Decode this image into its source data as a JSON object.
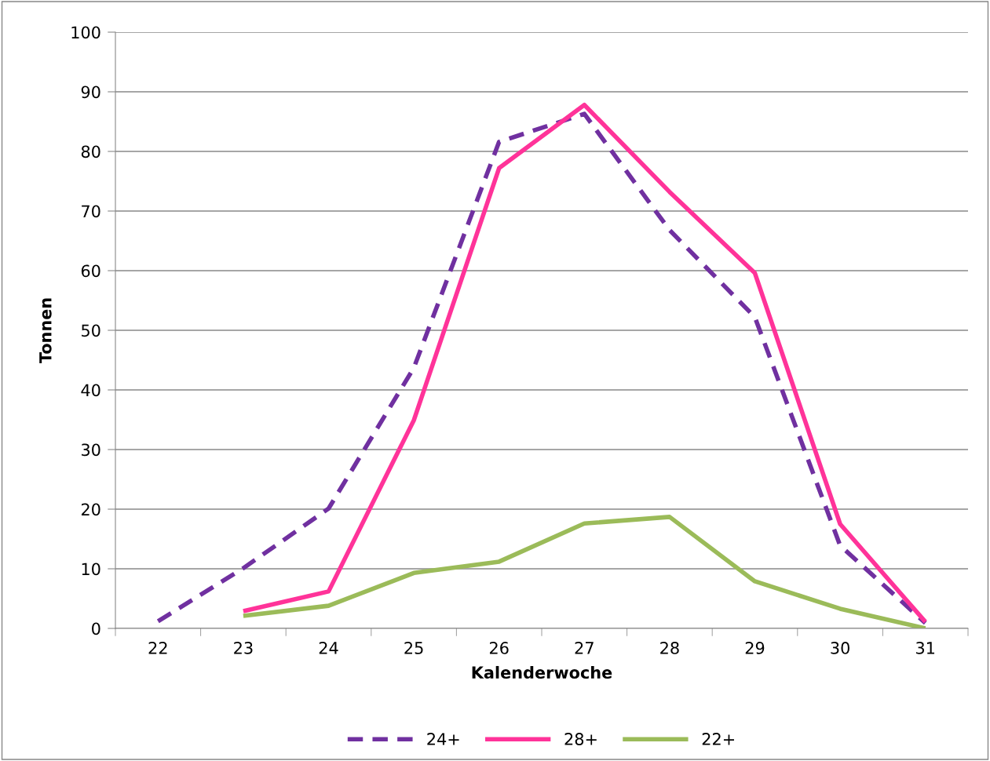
{
  "chart_data": {
    "type": "line",
    "xlabel": "Kalenderwoche",
    "ylabel": "Tonnen",
    "categories": [
      "22",
      "23",
      "24",
      "25",
      "26",
      "27",
      "28",
      "29",
      "30",
      "31"
    ],
    "series": [
      {
        "name": "24+",
        "color": "#7030a0",
        "line_style": "dashed",
        "values": [
          1.2,
          10.1,
          20.1,
          43.7,
          81.6,
          86.3,
          66.8,
          52.2,
          13.9,
          0.9
        ]
      },
      {
        "name": "28+",
        "color": "#ff3399",
        "line_style": "solid",
        "values": [
          null,
          2.9,
          6.2,
          34.9,
          77.2,
          87.8,
          73.2,
          59.6,
          17.5,
          1.1
        ]
      },
      {
        "name": "22+",
        "color": "#9bbb59",
        "line_style": "solid",
        "values": [
          null,
          2.1,
          3.8,
          9.3,
          11.2,
          17.6,
          18.7,
          7.9,
          3.3,
          0
        ]
      }
    ],
    "ylim": [
      0,
      100
    ],
    "yticks": [
      0,
      10,
      20,
      30,
      40,
      50,
      60,
      70,
      80,
      90,
      100
    ],
    "grid": "y",
    "legend": "bottom",
    "marker": "none"
  }
}
